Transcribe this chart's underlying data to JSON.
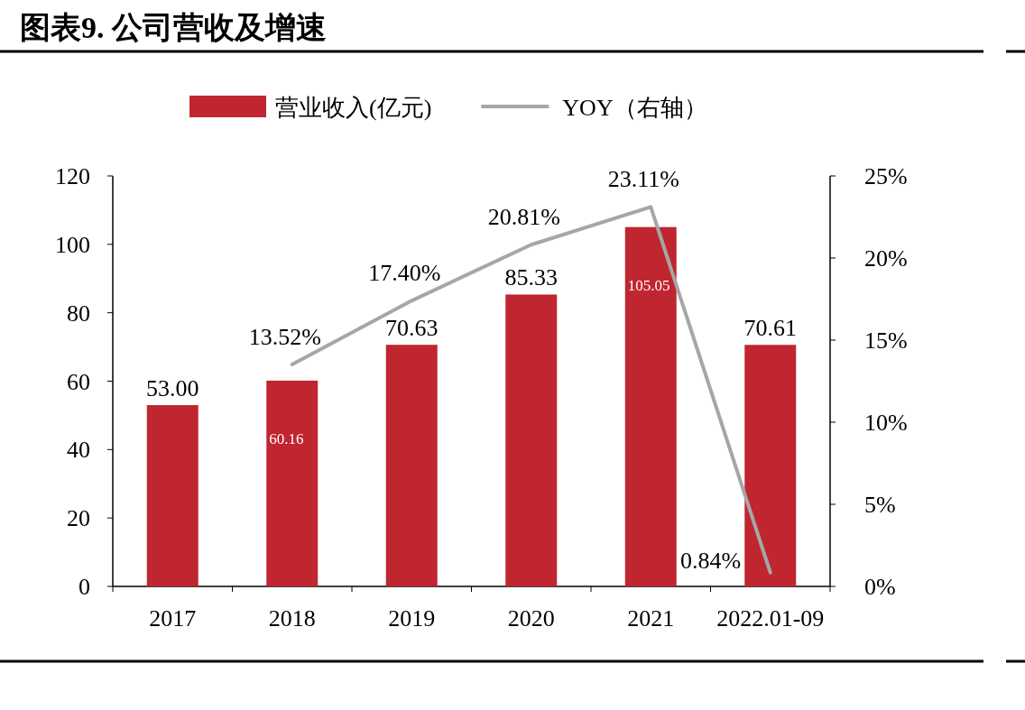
{
  "chart_data": {
    "type": "bar",
    "title": "图表9.    公司营收及增速",
    "categories": [
      "2017",
      "2018",
      "2019",
      "2020",
      "2021",
      "2022.01-09"
    ],
    "series": [
      {
        "name": "营业收入(亿元)",
        "color": "#c0262f",
        "values": [
          53.0,
          60.16,
          70.63,
          85.33,
          105.05,
          70.61
        ],
        "value_labels": [
          "53.00",
          "60.16",
          "70.63",
          "85.33",
          "105.05",
          "70.61"
        ]
      },
      {
        "name": "YOY（右轴）",
        "type": "line",
        "axis": "y2",
        "color": "#a6a6a6",
        "values": [
          null,
          13.52,
          17.4,
          20.81,
          23.11,
          0.84
        ],
        "value_labels": [
          null,
          "13.52%",
          "17.40%",
          "20.81%",
          "23.11%",
          "0.84%"
        ]
      }
    ],
    "ylim": [
      0,
      120
    ],
    "yticks": [
      0,
      20,
      40,
      60,
      80,
      100,
      120
    ],
    "y2lim": [
      0,
      25
    ],
    "y2ticks": [
      {
        "value": 0,
        "label": "0%"
      },
      {
        "value": 5,
        "label": "5%"
      },
      {
        "value": 10,
        "label": "10%"
      },
      {
        "value": 15,
        "label": "15%"
      },
      {
        "value": 20,
        "label": "20%"
      },
      {
        "value": 25,
        "label": "25%"
      }
    ],
    "legend": "top",
    "grid": false
  }
}
